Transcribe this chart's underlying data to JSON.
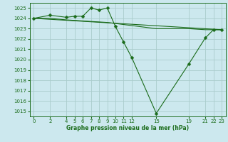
{
  "background_color": "#cce8ee",
  "grid_color": "#aacccc",
  "line_color": "#1a6b1a",
  "ylim": [
    1014.5,
    1025.5
  ],
  "xlim": [
    -0.5,
    23.5
  ],
  "yticks": [
    1015,
    1016,
    1017,
    1018,
    1019,
    1020,
    1021,
    1022,
    1023,
    1024,
    1025
  ],
  "xticks": [
    0,
    2,
    4,
    5,
    6,
    7,
    8,
    9,
    10,
    11,
    12,
    15,
    19,
    21,
    22,
    23
  ],
  "xlabel": "Graphe pression niveau de la mer (hPa)",
  "line1_x": [
    0,
    2,
    4,
    5,
    6,
    7,
    8,
    9,
    10,
    11,
    12,
    15,
    19,
    21,
    22,
    23
  ],
  "line1_y": [
    1024.0,
    1024.3,
    1024.1,
    1024.2,
    1024.2,
    1025.0,
    1024.8,
    1025.0,
    1023.2,
    1021.7,
    1020.2,
    1014.8,
    1019.6,
    1022.1,
    1022.9,
    1022.9
  ],
  "line2_x": [
    0,
    23
  ],
  "line2_y": [
    1024.0,
    1022.9
  ],
  "line3_x": [
    0,
    2,
    4,
    5,
    6,
    7,
    8,
    9,
    10,
    11,
    12,
    15,
    19,
    21,
    22,
    23
  ],
  "line3_y": [
    1024.0,
    1024.0,
    1023.85,
    1023.8,
    1023.75,
    1023.7,
    1023.65,
    1023.6,
    1023.5,
    1023.4,
    1023.3,
    1023.0,
    1023.0,
    1022.9,
    1022.9,
    1022.9
  ],
  "tick_fontsize": 5.0,
  "xlabel_fontsize": 5.5
}
